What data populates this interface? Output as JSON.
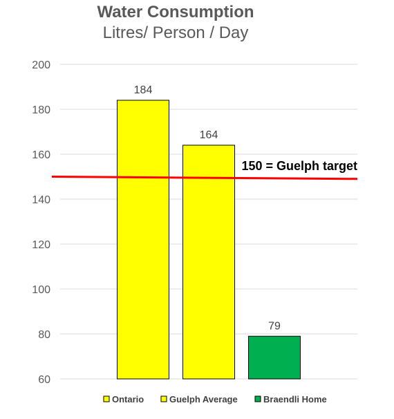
{
  "chart_data": {
    "type": "bar",
    "title": "Water Consumption",
    "subtitle": "Litres/ Person / Day",
    "xlabel": "",
    "ylabel": "",
    "ylim": [
      60,
      200
    ],
    "yticks": [
      60,
      80,
      100,
      120,
      140,
      160,
      180,
      200
    ],
    "grid": true,
    "legend_position": "bottom",
    "series": [
      {
        "name": "Ontario",
        "value": 184,
        "color": "#ffff00"
      },
      {
        "name": "Guelph Average",
        "value": 164,
        "color": "#ffff00"
      },
      {
        "name": "Braendli Home",
        "value": 79,
        "color": "#00b050"
      }
    ],
    "reference_line": {
      "label": "150 = Guelph target",
      "value_start": 150,
      "value_end": 149,
      "color": "#ff0000"
    }
  }
}
